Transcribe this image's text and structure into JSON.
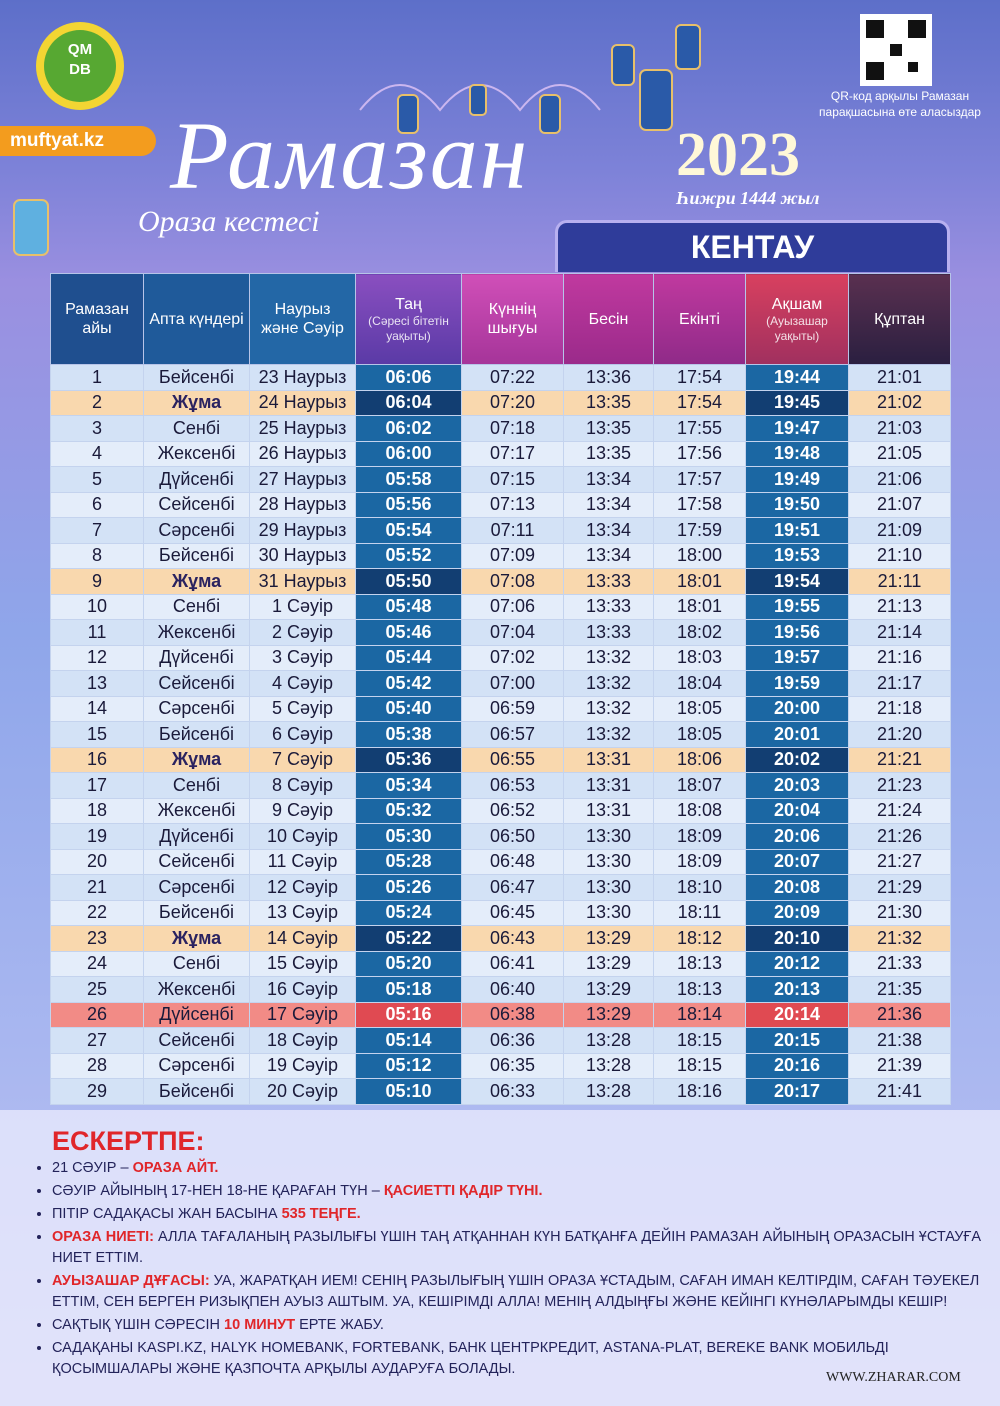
{
  "logo": [
    "QM",
    "DB"
  ],
  "site": "muftyat.kz",
  "title": "Рамазан",
  "subtitle": "Ораза кестесі",
  "year": "2023",
  "hijri": "Һижри 1444 жыл",
  "qr_note": "QR-код арқылы Рамазан парақшасына өте аласыздар",
  "city": "КЕНТАУ",
  "table": {
    "headers": [
      {
        "text": "Рамазан айы"
      },
      {
        "text": "Апта күндері"
      },
      {
        "text": "Наурыз және Сәуір"
      },
      {
        "text": "Таң",
        "note": "(Сәресі бітетін уақыты)"
      },
      {
        "text": "Күннің шығуы"
      },
      {
        "text": "Бесін"
      },
      {
        "text": "Екінті"
      },
      {
        "text": "Ақшам",
        "note": "(Ауызашар уақыты)"
      },
      {
        "text": "Құптан"
      }
    ],
    "friday_rows": [
      1,
      8,
      15,
      22
    ],
    "special_rows": [
      25
    ],
    "rows": [
      [
        "1",
        "Бейсенбі",
        "23 Наурыз",
        "06:06",
        "07:22",
        "13:36",
        "17:54",
        "19:44",
        "21:01"
      ],
      [
        "2",
        "Жұма",
        "24 Наурыз",
        "06:04",
        "07:20",
        "13:35",
        "17:54",
        "19:45",
        "21:02"
      ],
      [
        "3",
        "Сенбі",
        "25 Наурыз",
        "06:02",
        "07:18",
        "13:35",
        "17:55",
        "19:47",
        "21:03"
      ],
      [
        "4",
        "Жексенбі",
        "26 Наурыз",
        "06:00",
        "07:17",
        "13:35",
        "17:56",
        "19:48",
        "21:05"
      ],
      [
        "5",
        "Дүйсенбі",
        "27 Наурыз",
        "05:58",
        "07:15",
        "13:34",
        "17:57",
        "19:49",
        "21:06"
      ],
      [
        "6",
        "Сейсенбі",
        "28 Наурыз",
        "05:56",
        "07:13",
        "13:34",
        "17:58",
        "19:50",
        "21:07"
      ],
      [
        "7",
        "Сәрсенбі",
        "29 Наурыз",
        "05:54",
        "07:11",
        "13:34",
        "17:59",
        "19:51",
        "21:09"
      ],
      [
        "8",
        "Бейсенбі",
        "30 Наурыз",
        "05:52",
        "07:09",
        "13:34",
        "18:00",
        "19:53",
        "21:10"
      ],
      [
        "9",
        "Жұма",
        "31 Наурыз",
        "05:50",
        "07:08",
        "13:33",
        "18:01",
        "19:54",
        "21:11"
      ],
      [
        "10",
        "Сенбі",
        "1 Сәуір",
        "05:48",
        "07:06",
        "13:33",
        "18:01",
        "19:55",
        "21:13"
      ],
      [
        "11",
        "Жексенбі",
        "2 Сәуір",
        "05:46",
        "07:04",
        "13:33",
        "18:02",
        "19:56",
        "21:14"
      ],
      [
        "12",
        "Дүйсенбі",
        "3 Сәуір",
        "05:44",
        "07:02",
        "13:32",
        "18:03",
        "19:57",
        "21:16"
      ],
      [
        "13",
        "Сейсенбі",
        "4 Сәуір",
        "05:42",
        "07:00",
        "13:32",
        "18:04",
        "19:59",
        "21:17"
      ],
      [
        "14",
        "Сәрсенбі",
        "5 Сәуір",
        "05:40",
        "06:59",
        "13:32",
        "18:05",
        "20:00",
        "21:18"
      ],
      [
        "15",
        "Бейсенбі",
        "6 Сәуір",
        "05:38",
        "06:57",
        "13:32",
        "18:05",
        "20:01",
        "21:20"
      ],
      [
        "16",
        "Жұма",
        "7 Сәуір",
        "05:36",
        "06:55",
        "13:31",
        "18:06",
        "20:02",
        "21:21"
      ],
      [
        "17",
        "Сенбі",
        "8 Сәуір",
        "05:34",
        "06:53",
        "13:31",
        "18:07",
        "20:03",
        "21:23"
      ],
      [
        "18",
        "Жексенбі",
        "9 Сәуір",
        "05:32",
        "06:52",
        "13:31",
        "18:08",
        "20:04",
        "21:24"
      ],
      [
        "19",
        "Дүйсенбі",
        "10 Сәуір",
        "05:30",
        "06:50",
        "13:30",
        "18:09",
        "20:06",
        "21:26"
      ],
      [
        "20",
        "Сейсенбі",
        "11 Сәуір",
        "05:28",
        "06:48",
        "13:30",
        "18:09",
        "20:07",
        "21:27"
      ],
      [
        "21",
        "Сәрсенбі",
        "12 Сәуір",
        "05:26",
        "06:47",
        "13:30",
        "18:10",
        "20:08",
        "21:29"
      ],
      [
        "22",
        "Бейсенбі",
        "13 Сәуір",
        "05:24",
        "06:45",
        "13:30",
        "18:11",
        "20:09",
        "21:30"
      ],
      [
        "23",
        "Жұма",
        "14 Сәуір",
        "05:22",
        "06:43",
        "13:29",
        "18:12",
        "20:10",
        "21:32"
      ],
      [
        "24",
        "Сенбі",
        "15 Сәуір",
        "05:20",
        "06:41",
        "13:29",
        "18:13",
        "20:12",
        "21:33"
      ],
      [
        "25",
        "Жексенбі",
        "16 Сәуір",
        "05:18",
        "06:40",
        "13:29",
        "18:13",
        "20:13",
        "21:35"
      ],
      [
        "26",
        "Дүйсенбі",
        "17 Сәуір",
        "05:16",
        "06:38",
        "13:29",
        "18:14",
        "20:14",
        "21:36"
      ],
      [
        "27",
        "Сейсенбі",
        "18 Сәуір",
        "05:14",
        "06:36",
        "13:28",
        "18:15",
        "20:15",
        "21:38"
      ],
      [
        "28",
        "Сәрсенбі",
        "19 Сәуір",
        "05:12",
        "06:35",
        "13:28",
        "18:15",
        "20:16",
        "21:39"
      ],
      [
        "29",
        "Бейсенбі",
        "20 Сәуір",
        "05:10",
        "06:33",
        "13:28",
        "18:16",
        "20:17",
        "21:41"
      ]
    ]
  },
  "notes": {
    "heading": "ЕСКЕРТПЕ:",
    "items": [
      [
        {
          "text": "21 СӘУІР – "
        },
        {
          "text": "ОРАЗА АЙТ.",
          "red": true
        }
      ],
      [
        {
          "text": "СӘУІР АЙЫНЫҢ 17-НЕН 18-НЕ ҚАРАҒАН ТҮН – "
        },
        {
          "text": "ҚАСИЕТТІ ҚАДІР ТҮНІ.",
          "red": true
        }
      ],
      [
        {
          "text": "ПІТІР САДАҚАСЫ ЖАН БАСЫНА "
        },
        {
          "text": "535 ТЕҢГЕ.",
          "red": true
        }
      ],
      [
        {
          "text": "ОРАЗА НИЕТІ:",
          "red": true
        },
        {
          "text": " АЛЛА ТАҒАЛАНЫҢ РАЗЫЛЫҒЫ ҮШІН ТАҢ АТҚАННАН КҮН БАТҚАНҒА ДЕЙІН РАМАЗАН АЙЫНЫҢ ОРАЗАСЫН ҰСТАУҒА НИЕТ ЕТТІМ."
        }
      ],
      [
        {
          "text": "АУЫЗАШАР ДҰҒАСЫ:",
          "red": true
        },
        {
          "text": " УА, ЖАРАТҚАН ИЕМ! СЕНІҢ РАЗЫЛЫҒЫҢ ҮШІН ОРАЗА ҰСТАДЫМ, САҒАН ИМАН КЕЛТІРДІМ, САҒАН ТӘУЕКЕЛ ЕТТІМ, СЕН БЕРГЕН РИЗЫҚПЕН АУЫЗ АШТЫМ. УА, КЕШІРІМДІ АЛЛА! МЕНІҢ АЛДЫҢҒЫ ЖӘНЕ КЕЙІНГІ КҮНӘЛАРЫМДЫ КЕШІР!"
        }
      ],
      [
        {
          "text": "САҚТЫҚ ҮШІН СӘРЕСІН "
        },
        {
          "text": "10 МИНУТ",
          "red": true
        },
        {
          "text": " ЕРТЕ ЖАБУ."
        }
      ],
      [
        {
          "text": "САДАҚАНЫ KASPI.KZ, HALYK HOMEBANK, FORTEBANK, БАНК ЦЕНТРКРЕДИТ, ASTANA-PLAT, BEREKE BANK МОБИЛЬДІ ҚОСЫМШАЛАРЫ ЖӘНЕ ҚАЗПОЧТА АРҚЫЛЫ АУДАРУҒА БОЛАДЫ."
        }
      ]
    ]
  },
  "footer": "WWW.ZHARAR.COM"
}
